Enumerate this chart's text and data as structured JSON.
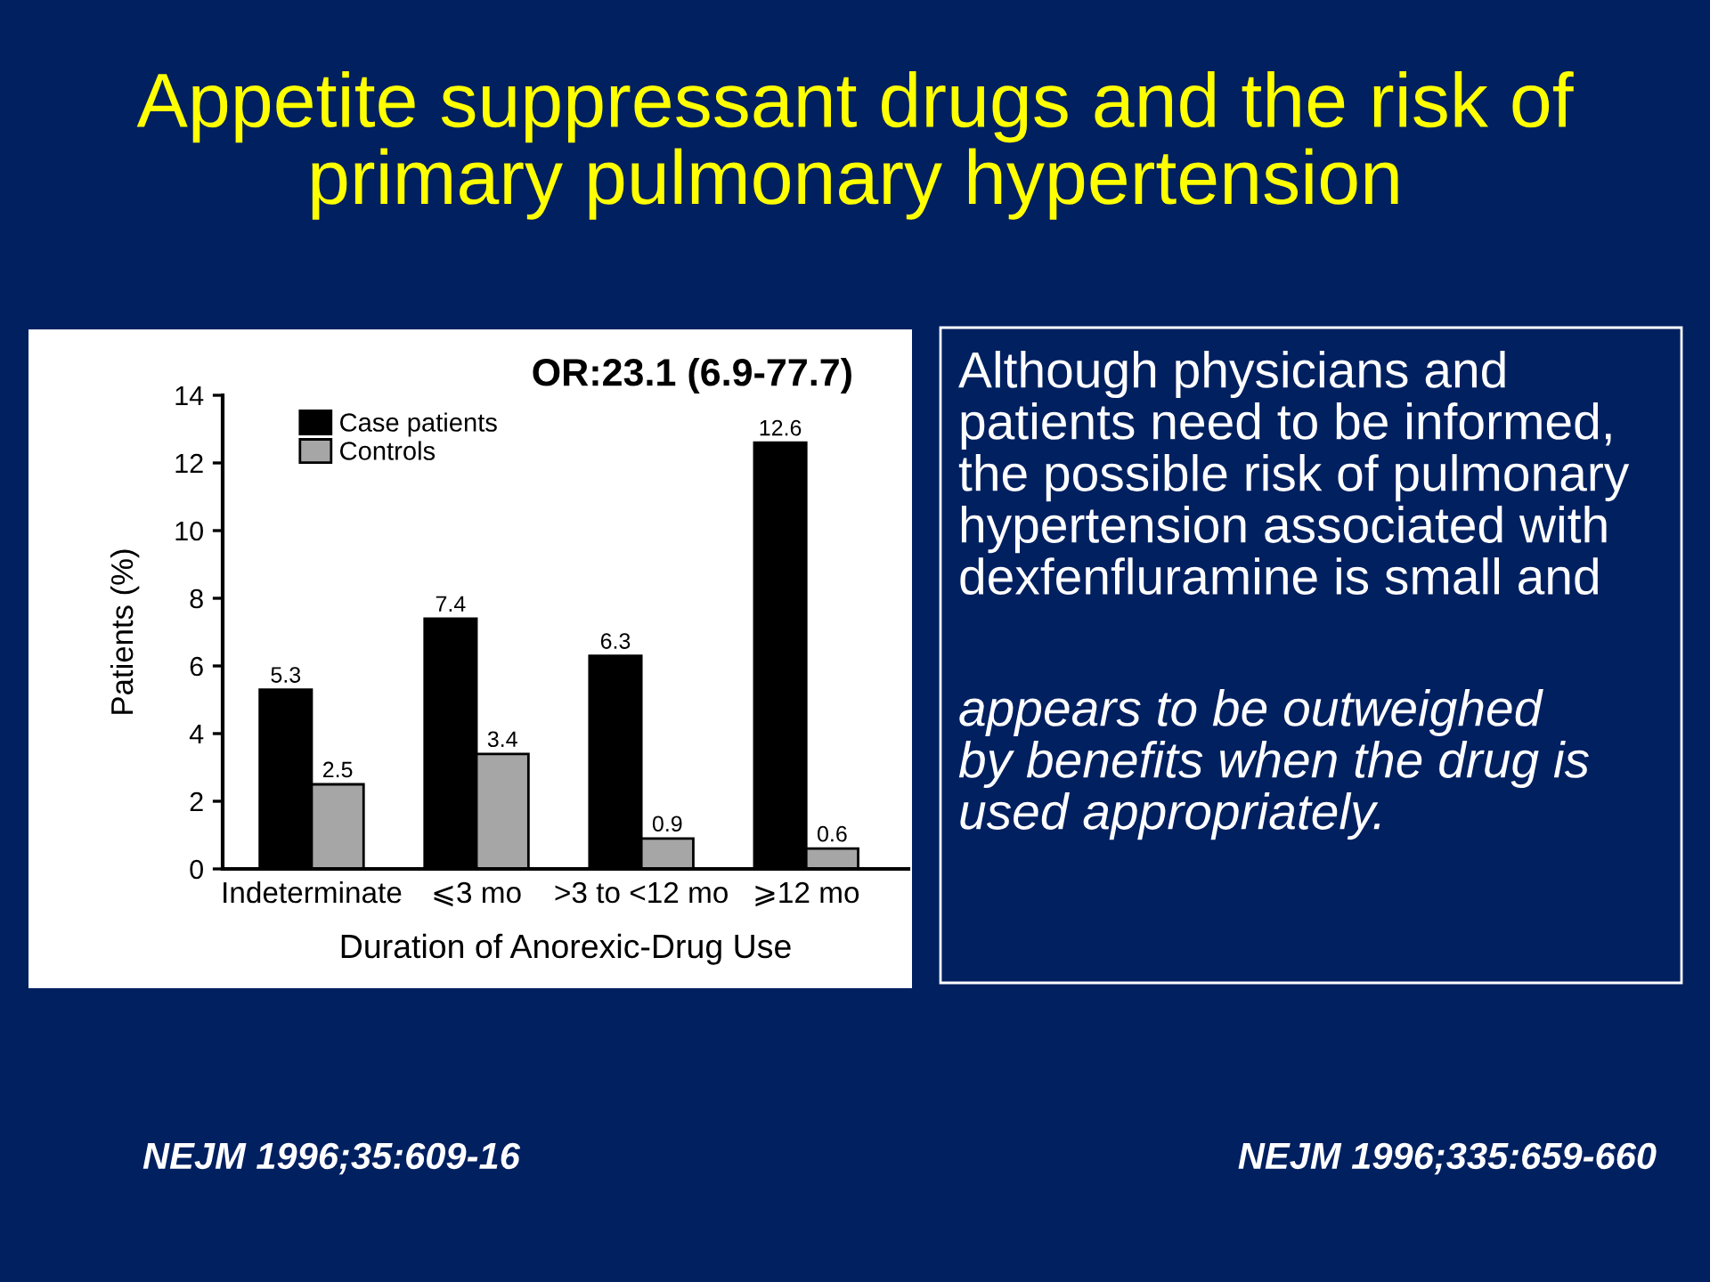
{
  "chart_data": {
    "type": "bar",
    "title": "Appetite suppressant drugs and the risk of\nprimary pulmonary hypertension",
    "xlabel": "Duration of Anorexic-Drug Use",
    "ylabel": "Patients (%)",
    "categories": [
      "Indeterminate",
      "⩽3 mo",
      ">3 to <12 mo",
      "⩾12 mo"
    ],
    "series": [
      {
        "name": "Case patients",
        "color": "#000000",
        "values": [
          5.3,
          7.4,
          6.3,
          12.6
        ]
      },
      {
        "name": "Controls",
        "color": "#a6a6a6",
        "values": [
          2.5,
          3.4,
          0.9,
          0.6
        ]
      }
    ],
    "ylim": [
      0,
      14
    ],
    "yticks": [
      0,
      2,
      4,
      6,
      8,
      10,
      12,
      14
    ],
    "data_labels": true,
    "legend": "top left",
    "annotations": [
      "OR:23.1 (6.9-77.7)",
      "Although physicians and\npatients need to be informed,\nthe possible risk of pulmonary\nhypertension associated with\ndexfenfluramine is small and",
      "appears to be outweighed\nby benefits when the drug is\nused appropriately.",
      "NEJM 1996;35:609-16",
      "NEJM 1996;335:659-660"
    ]
  }
}
